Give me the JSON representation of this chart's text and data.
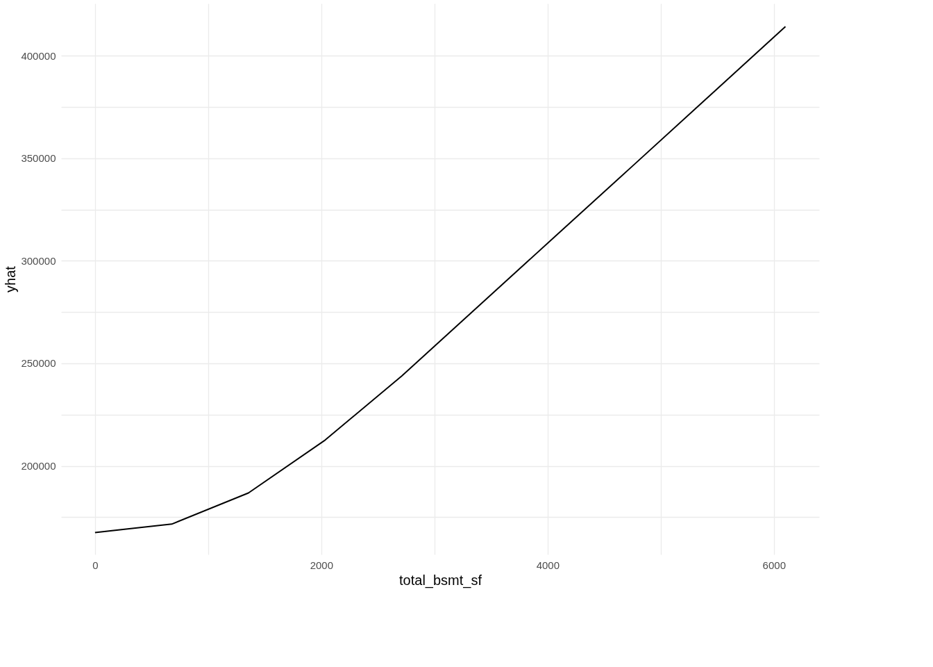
{
  "chart_data": {
    "type": "line",
    "xlabel": "total_bsmt_sf",
    "ylabel": "yhat",
    "x": [
      0,
      678,
      1356,
      2034,
      2712,
      3390,
      4068,
      4746,
      5424,
      6102
    ],
    "series": [
      {
        "color": "#000000",
        "values": [
          167500,
          171600,
          186800,
          212600,
          243900,
          277900,
          312000,
          346000,
          380100,
          414200
        ]
      }
    ],
    "xlim": [
      -300,
      6400
    ],
    "ylim": [
      156800,
      425500
    ],
    "xticks": [
      0,
      {
        "value": 1000,
        "label": null
      },
      2000,
      {
        "value": 3000,
        "label": null
      },
      4000,
      {
        "value": 5000,
        "label": null
      },
      6000
    ],
    "yticks": [
      {
        "value": 175000,
        "label": null
      },
      200000,
      {
        "value": 225000,
        "label": null
      },
      250000,
      {
        "value": 275000,
        "label": null
      },
      300000,
      {
        "value": 325000,
        "label": null
      },
      350000,
      {
        "value": 375000,
        "label": null
      },
      400000
    ],
    "grid": true,
    "legend": false,
    "marker": "none",
    "line_style": "solid"
  }
}
